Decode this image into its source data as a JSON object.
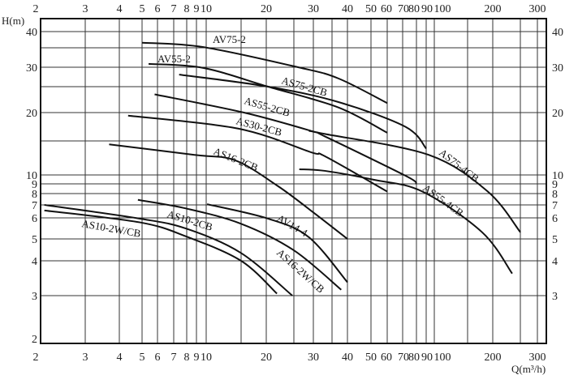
{
  "chart_data": {
    "type": "line",
    "title": "",
    "xlabel": "Q(m³/h)",
    "ylabel": "H(m)",
    "x_scale": "log",
    "y_scale": "log",
    "xlim": [
      2,
      300
    ],
    "ylim": [
      2,
      45
    ],
    "grid": true,
    "line_color": "#111111",
    "x_tick_labels": [
      "2",
      "3",
      "4",
      "5",
      "6",
      "7",
      "8",
      "9",
      "10",
      "20",
      "30",
      "40",
      "50",
      "60",
      "70",
      "80",
      "90",
      "100",
      "200",
      "300"
    ],
    "y_tick_labels_left": [
      "40",
      "30",
      "20",
      "10",
      "9",
      "8",
      "7",
      "6",
      "5",
      "4",
      "3",
      "2"
    ],
    "y_tick_labels_right": [
      "40",
      "30",
      "20",
      "10",
      "9",
      "8",
      "7",
      "6",
      "5",
      "4",
      "3"
    ],
    "series": [
      {
        "name": "AV75-2",
        "points": [
          [
            5,
            36.5
          ],
          [
            9.7,
            35.2
          ],
          [
            26,
            30
          ],
          [
            37,
            27
          ],
          [
            60,
            21.7
          ]
        ]
      },
      {
        "name": "AV55-2",
        "points": [
          [
            5.4,
            30.8
          ],
          [
            9.7,
            29.8
          ],
          [
            20.3,
            25
          ],
          [
            37,
            20.9
          ],
          [
            60,
            16.3
          ]
        ]
      },
      {
        "name": "AS75-2CB",
        "points": [
          [
            7.4,
            28
          ],
          [
            20.3,
            25
          ],
          [
            37,
            21.9
          ],
          [
            72,
            17.3
          ],
          [
            90,
            13.7
          ]
        ]
      },
      {
        "name": "AS55-2CB",
        "points": [
          [
            5.8,
            23.4
          ],
          [
            15.5,
            20
          ],
          [
            29.4,
            16.6
          ],
          [
            33,
            15.7
          ],
          [
            72,
            9.9
          ],
          [
            80,
            9
          ]
        ]
      },
      {
        "name": "AS30-2CB",
        "points": [
          [
            4.36,
            19.4
          ],
          [
            14.5,
            17
          ],
          [
            29.4,
            13.1
          ],
          [
            33,
            12.5
          ],
          [
            60,
            8.2
          ]
        ]
      },
      {
        "name": "AS16-2CB",
        "points": [
          [
            3.67,
            14.4
          ],
          [
            8.8,
            12.7
          ],
          [
            14,
            11.9
          ],
          [
            22,
            8.75
          ],
          [
            30,
            6.4
          ],
          [
            40,
            5
          ]
        ]
      },
      {
        "name": "AS75-4CB",
        "points": [
          [
            28.8,
            16.6
          ],
          [
            33,
            16.1
          ],
          [
            93,
            12.7
          ],
          [
            189,
            8.2
          ],
          [
            250,
            5.3
          ]
        ]
      },
      {
        "name": "AS55-4CB",
        "points": [
          [
            26.3,
            10.7
          ],
          [
            33,
            10.5
          ],
          [
            51.5,
            9.45
          ],
          [
            86,
            8.2
          ],
          [
            177,
            5.3
          ],
          [
            234,
            3.6
          ]
        ]
      },
      {
        "name": "AS10-2W/CB",
        "points": [
          [
            2.07,
            6.55
          ],
          [
            4.9,
            5.77
          ],
          [
            8,
            5.1
          ],
          [
            15,
            4.0
          ],
          [
            21.8,
            3.05
          ]
        ]
      },
      {
        "name": "AS10-2CB",
        "points": [
          [
            2.07,
            7.0
          ],
          [
            4.9,
            5.96
          ],
          [
            8,
            5.46
          ],
          [
            15,
            4.33
          ],
          [
            24.7,
            3.0
          ]
        ]
      },
      {
        "name": "AV14-4",
        "points": [
          [
            10.1,
            7.06
          ],
          [
            20.3,
            5.96
          ],
          [
            28.8,
            5.07
          ],
          [
            40,
            3.35
          ]
        ]
      },
      {
        "name": "AS16-2W/CB",
        "points": [
          [
            4.8,
            7.43
          ],
          [
            8,
            6.7
          ],
          [
            15,
            5.7
          ],
          [
            25,
            4.45
          ],
          [
            37.9,
            3.15
          ]
        ]
      }
    ]
  }
}
